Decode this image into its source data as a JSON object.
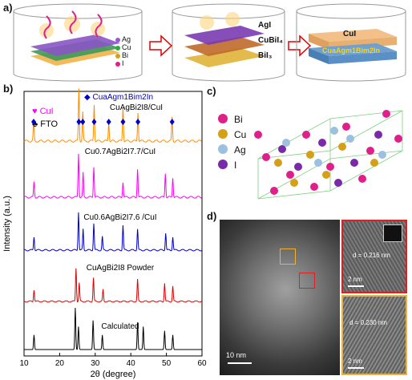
{
  "panel_a": {
    "label": "a)",
    "legend": [
      "Ag",
      "Cu",
      "Bi",
      "I"
    ],
    "layers": [
      "AgI",
      "CuBiI₄",
      "BiI₃"
    ],
    "final_top": "CuI",
    "final_bottom": "CuaAgm1Bim2In"
  },
  "panel_b": {
    "label": "b)",
    "legend_cui": "CuI",
    "legend_fto": "FTO",
    "legend_phase": "CuaAgm1Bim2In",
    "xlabel": "2θ (degree)",
    "ylabel": "Intensity (a.u.)",
    "xticks": [
      "10",
      "20",
      "30",
      "40",
      "50",
      "60"
    ],
    "traces": [
      {
        "name": "CuAgBi2I8/CuI",
        "color": "#ff8c00"
      },
      {
        "name": "Cu0.7AgBi2I7.7/CuI",
        "color": "#ff00ff"
      },
      {
        "name": "Cu0.6AgBi2I7.6 /CuI",
        "color": "#0000cc"
      },
      {
        "name": "CuAgBi2I8 Powder",
        "color": "#e00000"
      },
      {
        "name": "Calculated",
        "color": "#000000"
      }
    ]
  },
  "chart_data": {
    "type": "line",
    "xlabel": "2θ (degree)",
    "ylabel": "Intensity (a.u.)",
    "xlim": [
      10,
      60
    ],
    "series": [
      {
        "name": "CuAgBi2I8/CuI",
        "peaks": [
          12.7,
          25.4,
          26.5,
          29.7,
          33.8,
          37.8,
          42.0,
          51.6
        ]
      },
      {
        "name": "Cu0.7AgBi2I7.7/CuI",
        "peaks": [
          12.8,
          25.3,
          26.6,
          29.6,
          37.8,
          41.9,
          49.7,
          51.8
        ]
      },
      {
        "name": "Cu0.6AgBi2I7.6 /CuI",
        "peaks": [
          12.8,
          25.3,
          26.6,
          29.6,
          32.0,
          37.8,
          41.9,
          49.8,
          51.8
        ]
      },
      {
        "name": "CuAgBi2I8 Powder",
        "peaks": [
          12.8,
          24.6,
          25.5,
          29.5,
          32.2,
          41.9,
          49.5,
          51.8
        ]
      },
      {
        "name": "Calculated",
        "peaks": [
          12.8,
          24.4,
          25.3,
          29.4,
          32.0,
          41.9,
          43.5,
          49.5,
          51.8
        ]
      }
    ]
  },
  "panel_c": {
    "label": "c)",
    "legend": [
      "Bi",
      "Cu",
      "Ag",
      "I"
    ]
  },
  "panel_d": {
    "label": "d)",
    "scale_main": "10 nm",
    "d1": "d = 0.216 nm",
    "d2": "d = 0.230 nm",
    "scale_inset1": "2 nm",
    "scale_inset2": "2 nm"
  },
  "colors": {
    "Ag": "#9b59d0",
    "Cu": "#2eaa3a",
    "Bi": "#d4a017",
    "I": "#e0208a",
    "arrow": "#e00000"
  }
}
